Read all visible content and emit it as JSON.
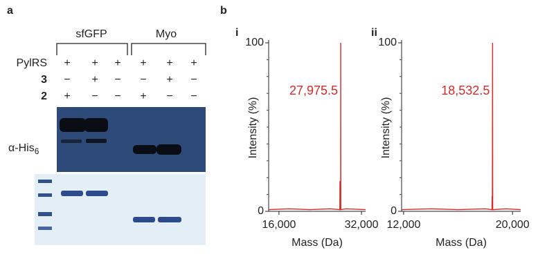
{
  "panel_a": {
    "label": "a",
    "groups": [
      "sfGFP",
      "Myo"
    ],
    "rows": [
      {
        "label": "PylRS",
        "signs": [
          "+",
          "+",
          "+",
          "+",
          "+",
          "+"
        ]
      },
      {
        "label": "3",
        "signs": [
          "−",
          "+",
          "−",
          "−",
          "+",
          "−"
        ]
      },
      {
        "label": "2",
        "signs": [
          "+",
          "−",
          "−",
          "+",
          "−",
          "−"
        ]
      }
    ],
    "blot_label": "α-His",
    "blot_label_sub": "6"
  },
  "panel_b": {
    "label": "b"
  },
  "chart_data": [
    {
      "type": "line",
      "panel": "i",
      "annotation": "27,975.5",
      "y_label": "Intensity (%)",
      "x_label": "Mass (Da)",
      "x": [
        14000,
        18000,
        22000,
        26000,
        27800,
        27830,
        27860,
        27960,
        27975.5,
        27990,
        29000,
        32800
      ],
      "values": [
        1,
        1.5,
        1,
        1.5,
        1,
        18,
        1,
        1,
        100,
        1,
        1.5,
        1
      ],
      "color": "#d42a2a",
      "xlim": [
        14000,
        32800
      ],
      "xticks": [
        {
          "value": 16000,
          "label": "16,000"
        },
        {
          "value": 32000,
          "label": "32,000"
        }
      ],
      "ylim": [
        0,
        100
      ],
      "yticks": [
        0,
        100
      ],
      "yticks_minor": [
        10,
        20,
        30,
        40,
        50,
        60,
        70,
        80,
        90
      ]
    },
    {
      "type": "line",
      "panel": "ii",
      "annotation": "18,532.5",
      "y_label": "Intensity (%)",
      "x_label": "Mass (Da)",
      "x": [
        11850,
        14000,
        16000,
        18000,
        18490,
        18505,
        18520,
        18532.5,
        18545,
        19500,
        20600
      ],
      "values": [
        1,
        1.5,
        1,
        1.5,
        1,
        9,
        1,
        100,
        1,
        1.5,
        1
      ],
      "color": "#d42a2a",
      "xlim": [
        11850,
        20600
      ],
      "xticks": [
        {
          "value": 12000,
          "label": "12,000"
        },
        {
          "value": 20000,
          "label": "20,000"
        }
      ],
      "ylim": [
        0,
        100
      ],
      "yticks": [
        0,
        100
      ],
      "yticks_minor": [
        10,
        20,
        30,
        40,
        50,
        60,
        70,
        80,
        90
      ]
    }
  ]
}
